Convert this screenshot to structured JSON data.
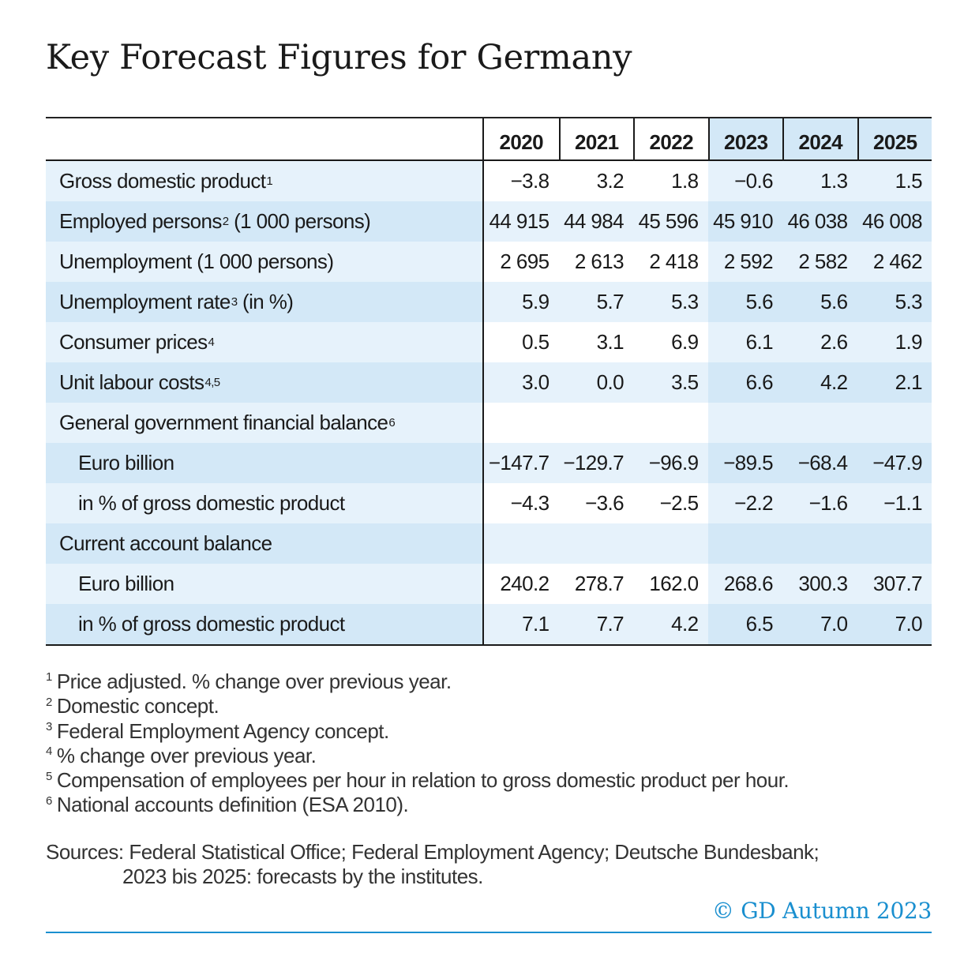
{
  "title": "Key Forecast Figures for Germany",
  "years": [
    "2020",
    "2021",
    "2022",
    "2023",
    "2024",
    "2025"
  ],
  "rows": [
    {
      "label": "Gross domestic product",
      "sup": "1",
      "sub": false,
      "values": [
        "−3.8",
        "3.2",
        "1.8",
        "−0.6",
        "1.3",
        "1.5"
      ]
    },
    {
      "label": "Employed persons",
      "sup": "2",
      "suffix": " (1 000 persons)",
      "sub": false,
      "values": [
        "44 915",
        "44 984",
        "45 596",
        "45 910",
        "46 038",
        "46 008"
      ]
    },
    {
      "label": "Unemployment (1 000 persons)",
      "sup": "",
      "sub": false,
      "values": [
        "2 695",
        "2 613",
        "2 418",
        "2 592",
        "2 582",
        "2 462"
      ]
    },
    {
      "label": "Unemployment rate",
      "sup": "3",
      "suffix": " (in %)",
      "sub": false,
      "values": [
        "5.9",
        "5.7",
        "5.3",
        "5.6",
        "5.6",
        "5.3"
      ]
    },
    {
      "label": "Consumer prices",
      "sup": "4",
      "sub": false,
      "values": [
        "0.5",
        "3.1",
        "6.9",
        "6.1",
        "2.6",
        "1.9"
      ]
    },
    {
      "label": "Unit labour costs",
      "sup": "4,5",
      "sub": false,
      "values": [
        "3.0",
        "0.0",
        "3.5",
        "6.6",
        "4.2",
        "2.1"
      ]
    },
    {
      "label": "General government financial balance",
      "sup": "6",
      "sub": false,
      "values": [
        "",
        "",
        "",
        "",
        "",
        ""
      ]
    },
    {
      "label": "Euro billion",
      "sup": "",
      "sub": true,
      "values": [
        "−147.7",
        "−129.7",
        "−96.9",
        "−89.5",
        "−68.4",
        "−47.9"
      ]
    },
    {
      "label": "in % of gross domestic product",
      "sup": "",
      "sub": true,
      "values": [
        "−4.3",
        "−3.6",
        "−2.5",
        "−2.2",
        "−1.6",
        "−1.1"
      ]
    },
    {
      "label": "Current account balance",
      "sup": "",
      "sub": false,
      "values": [
        "",
        "",
        "",
        "",
        "",
        ""
      ]
    },
    {
      "label": "Euro billion",
      "sup": "",
      "sub": true,
      "values": [
        "240.2",
        "278.7",
        "162.0",
        "268.6",
        "300.3",
        "307.7"
      ]
    },
    {
      "label": "in % of gross domestic product",
      "sup": "",
      "sub": true,
      "values": [
        "7.1",
        "7.7",
        "4.2",
        "6.5",
        "7.0",
        "7.0"
      ]
    }
  ],
  "footnotes": [
    {
      "num": "1",
      "text": "Price adjusted. % change over previous year."
    },
    {
      "num": "2",
      "text": "Domestic concept."
    },
    {
      "num": "3",
      "text": "Federal Employment Agency concept."
    },
    {
      "num": "4",
      "text": "% change over previous year."
    },
    {
      "num": "5",
      "text": "Compensation of employees per hour in relation to gross domestic product per hour."
    },
    {
      "num": "6",
      "text": "National accounts definition (ESA 2010)."
    }
  ],
  "sources": {
    "line1": "Sources: Federal Statistical Office; Federal Employment Agency; Deutsche Bundesbank;",
    "line2": "2023 bis 2025: forecasts by the institutes."
  },
  "copyright": "© GD Autumn 2023",
  "colors": {
    "accent": "#1a8fcf",
    "band_light": "#e6f2fb",
    "band_dark": "#d3e8f7"
  }
}
